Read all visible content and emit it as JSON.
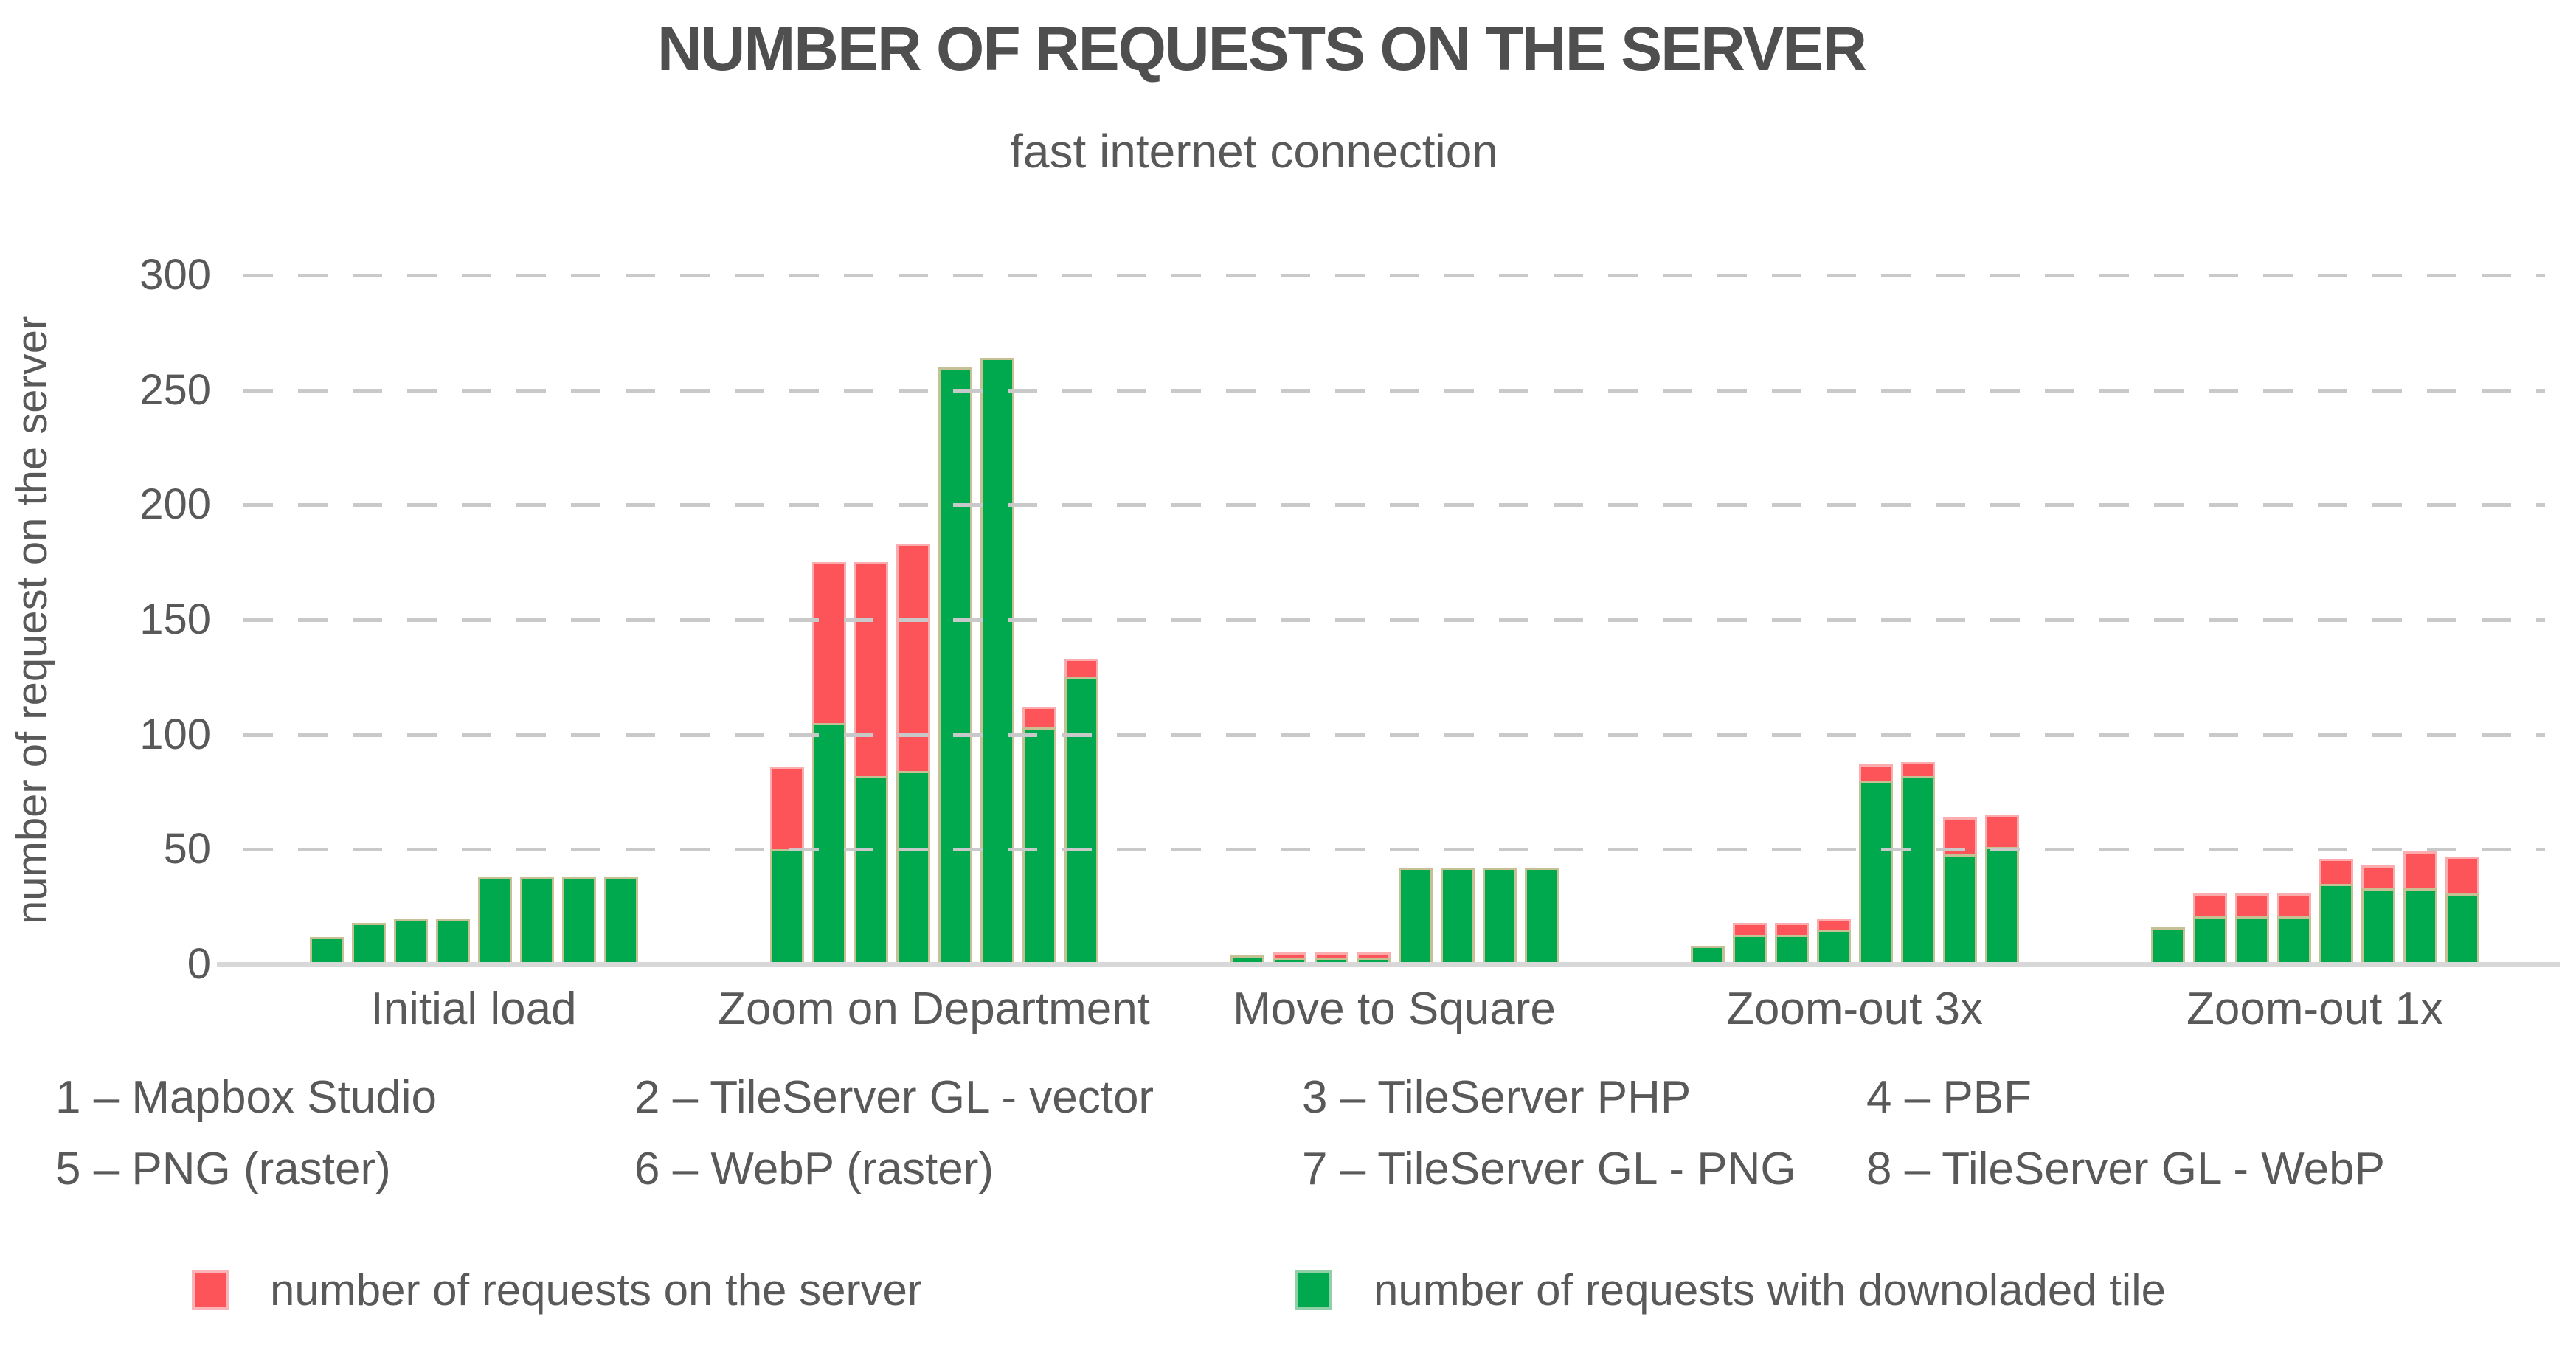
{
  "chart_data": {
    "type": "bar",
    "stacked": true,
    "title": "NUMBER OF REQUESTS ON THE SERVER",
    "subtitle": "fast internet connection",
    "xlabel": "",
    "ylabel": "number of request on the server",
    "ylim": [
      0,
      300
    ],
    "yticks": [
      0,
      50,
      100,
      150,
      200,
      250,
      300
    ],
    "grid": "horizontal-dashed",
    "legend_position": "bottom",
    "categories": [
      "Initial load",
      "Zoom on Department",
      "Move to Square",
      "Zoom-out 3x",
      "Zoom-out 1x"
    ],
    "bar_numbers": [
      1,
      2,
      3,
      4,
      5,
      6,
      7,
      8
    ],
    "series": [
      {
        "name": "number of requests on the server",
        "color": "#fc5458",
        "segment": "top",
        "meaning": "total stack height; red cap = total minus green"
      },
      {
        "name": "number of requests with downoladed tile",
        "color": "#00a94e",
        "segment": "bottom",
        "meaning": "green bottom segment"
      }
    ],
    "groups": [
      {
        "label": "Initial load",
        "green": [
          12,
          18,
          20,
          20,
          38,
          38,
          38,
          38
        ],
        "total": [
          12,
          18,
          20,
          20,
          38,
          38,
          38,
          38
        ]
      },
      {
        "label": "Zoom on Department",
        "green": [
          50,
          105,
          82,
          84,
          260,
          264,
          103,
          125
        ],
        "total": [
          86,
          175,
          175,
          183,
          260,
          264,
          112,
          133
        ]
      },
      {
        "label": "Move to Square",
        "green": [
          4,
          3,
          3,
          3,
          42,
          42,
          42,
          42
        ],
        "total": [
          4,
          5,
          5,
          5,
          42,
          42,
          42,
          42
        ]
      },
      {
        "label": "Zoom-out 3x",
        "green": [
          8,
          13,
          13,
          15,
          80,
          82,
          48,
          51
        ],
        "total": [
          8,
          18,
          18,
          20,
          87,
          88,
          64,
          65
        ]
      },
      {
        "label": "Zoom-out 1x",
        "green": [
          16,
          21,
          21,
          21,
          35,
          33,
          33,
          31
        ],
        "total": [
          16,
          31,
          31,
          31,
          46,
          43,
          49,
          47
        ]
      }
    ]
  },
  "key": {
    "row1": [
      "1 – Mapbox Studio",
      "2 – TileServer GL - vector",
      "3 – TileServer PHP",
      "4 – PBF"
    ],
    "row2": [
      "5 – PNG (raster)",
      "6 – WebP (raster)",
      "7 – TileServer GL - PNG",
      "8 – TileServer GL - WebP"
    ]
  },
  "legend": [
    {
      "label": "number of requests on the server",
      "color": "#fc5458"
    },
    {
      "label": "number of requests with downoladed tile",
      "color": "#00a94e"
    }
  ],
  "colors": {
    "red_fill": "#fc5458",
    "red_border": "#fbacaf",
    "green_fill": "#00a94e",
    "green_border_tan": "#c6c095",
    "gridline": "#c9c9c9",
    "axis_baseline": "#d8d8d8",
    "text": "#595959"
  }
}
